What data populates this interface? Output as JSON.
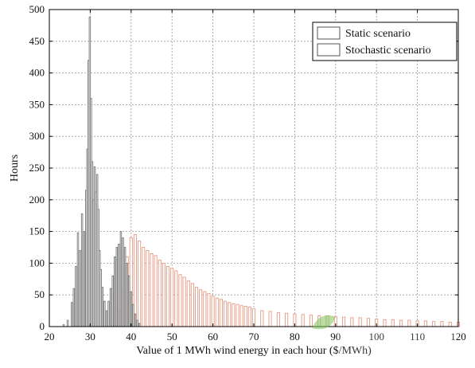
{
  "chart_data": {
    "type": "bar",
    "xlabel": "Value of 1 MWh wind energy in each hour ($/MWh)",
    "ylabel": "Hours",
    "xlim": [
      20,
      120
    ],
    "ylim": [
      0,
      500
    ],
    "xticks": [
      20,
      30,
      40,
      50,
      60,
      70,
      80,
      90,
      100,
      110,
      120
    ],
    "yticks": [
      0,
      50,
      100,
      150,
      200,
      250,
      300,
      350,
      400,
      450,
      500
    ],
    "grid": true,
    "legend_position": "top-right",
    "colors": {
      "static": "#7a7a7a",
      "stochastic": "#e59a84",
      "grid": "#9a9a9a"
    },
    "series": [
      {
        "name": "Static scenario",
        "x": [
          23.5,
          24.5,
          25.5,
          26.0,
          26.5,
          27.0,
          27.5,
          28.0,
          28.5,
          29.0,
          29.3,
          29.6,
          29.9,
          30.2,
          30.5,
          30.8,
          31.1,
          31.4,
          31.7,
          32.0,
          32.3,
          32.6,
          33.0,
          33.5,
          34.0,
          34.5,
          35.0,
          35.5,
          36.0,
          36.5,
          37.0,
          37.5,
          38.0,
          38.5,
          39.0,
          39.5,
          40.0,
          40.5,
          41.0,
          41.5,
          42.0
        ],
        "values": [
          3,
          10,
          38,
          60,
          95,
          148,
          120,
          178,
          150,
          215,
          280,
          420,
          488,
          360,
          260,
          200,
          252,
          212,
          240,
          185,
          120,
          90,
          62,
          40,
          25,
          40,
          60,
          80,
          110,
          125,
          130,
          150,
          140,
          125,
          100,
          80,
          55,
          35,
          20,
          10,
          5
        ]
      },
      {
        "name": "Stochastic scenario",
        "x": [
          36,
          37,
          38,
          39,
          40,
          41,
          42,
          43,
          44,
          45,
          46,
          47,
          48,
          49,
          50,
          51,
          52,
          53,
          54,
          55,
          56,
          57,
          58,
          59,
          60,
          61,
          62,
          63,
          64,
          65,
          66,
          67,
          68,
          69,
          70,
          72,
          74,
          76,
          78,
          80,
          82,
          84,
          86,
          88,
          90,
          92,
          94,
          96,
          98,
          100,
          102,
          104,
          106,
          108,
          110,
          112,
          114,
          116,
          118,
          120
        ],
        "values": [
          5,
          25,
          60,
          110,
          140,
          145,
          135,
          125,
          120,
          115,
          112,
          105,
          100,
          95,
          92,
          88,
          82,
          78,
          72,
          68,
          62,
          58,
          55,
          52,
          48,
          45,
          43,
          40,
          38,
          36,
          35,
          33,
          32,
          31,
          28,
          25,
          24,
          22,
          21,
          20,
          19,
          18,
          17,
          17,
          16,
          15,
          14,
          14,
          13,
          12,
          11,
          11,
          10,
          10,
          9,
          9,
          8,
          8,
          7,
          7
        ]
      }
    ]
  }
}
